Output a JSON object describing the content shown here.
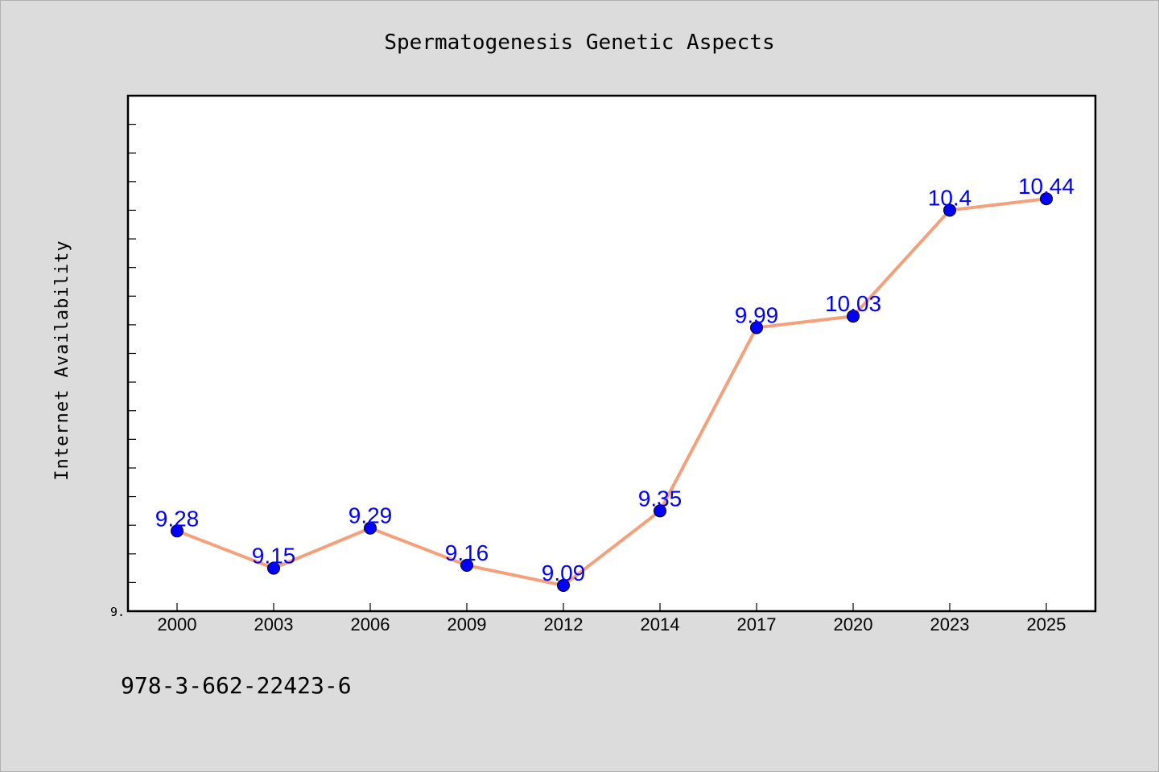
{
  "chart_data": {
    "type": "line",
    "title": "Spermatogenesis Genetic Aspects",
    "xlabel": "",
    "ylabel": "Internet Availability",
    "categories": [
      "2000",
      "2003",
      "2006",
      "2009",
      "2012",
      "2014",
      "2017",
      "2020",
      "2023",
      "2025"
    ],
    "values": [
      9.28,
      9.15,
      9.29,
      9.16,
      9.09,
      9.35,
      9.99,
      10.03,
      10.4,
      10.44
    ],
    "data_labels": [
      "9.28",
      "9.15",
      "9.29",
      "9.16",
      "9.09",
      "9.35",
      "9.99",
      "10.03",
      "10.4",
      "10.44"
    ],
    "ylim": [
      9.0,
      10.8
    ],
    "ytick_label": "9.",
    "grid": false,
    "legend": "none",
    "colors": {
      "line": "#f4a07a",
      "marker": "#0000ff",
      "label": "#0000ff",
      "background": "#dcdcdc",
      "plot": "#ffffff"
    }
  },
  "footer": {
    "isbn": "978-3-662-22423-6"
  }
}
